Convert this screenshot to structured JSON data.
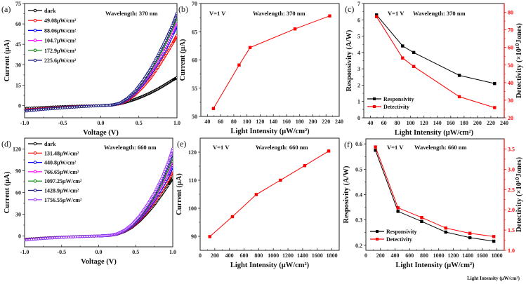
{
  "stray_label": "Light Intensity (μW/cm²)",
  "chart_data": [
    {
      "id": "a",
      "panel_label": "(a)",
      "type": "line",
      "annotation": "Wavelength: 370 nm",
      "xlabel": "Voltage (V)",
      "ylabel": "Current (μA)",
      "xlim": [
        -1.0,
        1.0
      ],
      "ylim": [
        -9,
        75
      ],
      "xticks": [
        -1.0,
        -0.5,
        0.0,
        0.5,
        1.0
      ],
      "xtick_labels": [
        "-1.0",
        "-0.5",
        "0.0",
        "0.5",
        "1.0"
      ],
      "yticks": [
        0,
        15,
        30,
        45,
        60,
        75
      ],
      "ytick_labels": [
        "0",
        "15",
        "30",
        "45",
        "60",
        "75"
      ],
      "legend_position": "top-left",
      "series": [
        {
          "name": "dark",
          "color": "#000000",
          "x": [
            -1.0,
            -0.75,
            -0.5,
            -0.25,
            0.0,
            0.15,
            0.25,
            0.35,
            0.45,
            0.55,
            0.65,
            0.75,
            0.85,
            0.95,
            1.0
          ],
          "y": [
            -2.0,
            -1.3,
            -0.7,
            -0.3,
            0.0,
            0.5,
            1.3,
            2.8,
            4.6,
            6.8,
            9.3,
            12.2,
            15.5,
            19.0,
            20.5
          ]
        },
        {
          "name": "49.08μW/cm²",
          "color": "#ff0000",
          "x": [
            -1.0,
            -0.75,
            -0.5,
            -0.25,
            0.0,
            0.15,
            0.25,
            0.35,
            0.45,
            0.55,
            0.65,
            0.75,
            0.85,
            0.95,
            1.0
          ],
          "y": [
            -3.2,
            -2.2,
            -1.3,
            -0.6,
            0.0,
            0.4,
            1.3,
            4.0,
            8.0,
            13.5,
            20.0,
            28.0,
            37.0,
            46.5,
            51.4
          ]
        },
        {
          "name": "88.06μW/cm²",
          "color": "#0000ff",
          "x": [
            -1.0,
            -0.75,
            -0.5,
            -0.25,
            0.0,
            0.15,
            0.25,
            0.35,
            0.45,
            0.55,
            0.65,
            0.75,
            0.85,
            0.95,
            1.0
          ],
          "y": [
            -3.6,
            -2.5,
            -1.5,
            -0.7,
            0.0,
            0.4,
            1.5,
            4.6,
            9.2,
            15.5,
            23.0,
            31.5,
            41.0,
            53.0,
            59.1
          ]
        },
        {
          "name": "104.7μW/cm²",
          "color": "#ff00ff",
          "x": [
            -1.0,
            -0.75,
            -0.5,
            -0.25,
            0.0,
            0.15,
            0.25,
            0.35,
            0.45,
            0.55,
            0.65,
            0.75,
            0.85,
            0.95,
            1.0
          ],
          "y": [
            -3.8,
            -2.6,
            -1.6,
            -0.7,
            0.0,
            0.4,
            1.6,
            4.9,
            9.8,
            16.5,
            24.5,
            33.5,
            43.5,
            55.5,
            62.2
          ]
        },
        {
          "name": "172.9μW/cm²",
          "color": "#008000",
          "x": [
            -1.0,
            -0.75,
            -0.5,
            -0.25,
            0.0,
            0.15,
            0.25,
            0.35,
            0.45,
            0.55,
            0.65,
            0.75,
            0.85,
            0.95,
            1.0
          ],
          "y": [
            -4.0,
            -2.7,
            -1.7,
            -0.8,
            0.0,
            0.4,
            1.7,
            5.2,
            10.3,
            17.3,
            25.8,
            35.3,
            46.0,
            58.5,
            65.5
          ]
        },
        {
          "name": "225.6μW/cm²",
          "color": "#1a1a80",
          "x": [
            -1.0,
            -0.75,
            -0.5,
            -0.25,
            0.0,
            0.15,
            0.25,
            0.35,
            0.45,
            0.55,
            0.65,
            0.75,
            0.85,
            0.95,
            1.0
          ],
          "y": [
            -4.2,
            -2.8,
            -1.8,
            -0.8,
            0.0,
            0.4,
            1.8,
            5.4,
            10.7,
            18.0,
            26.8,
            36.8,
            48.0,
            60.5,
            67.8
          ]
        }
      ]
    },
    {
      "id": "b",
      "panel_label": "(b)",
      "type": "line",
      "annotations": [
        "V=1 V",
        "Wavelength: 370 nm"
      ],
      "xlabel": "Light Intensity (μW/cm²)",
      "ylabel": "Current (μA)",
      "xlim": [
        30,
        240
      ],
      "ylim": [
        50,
        70
      ],
      "xticks": [
        40,
        60,
        80,
        100,
        120,
        140,
        160,
        180,
        200,
        220,
        240
      ],
      "xtick_labels": [
        "40",
        "60",
        "80",
        "100",
        "120",
        "140",
        "160",
        "180",
        "200",
        "220",
        "240"
      ],
      "yticks": [
        50,
        55,
        60,
        65,
        70
      ],
      "ytick_labels": [
        "50",
        "55",
        "60",
        "65",
        "70"
      ],
      "series": [
        {
          "name": "Current",
          "color": "#ff0000",
          "x": [
            49.08,
            88.06,
            104.7,
            172.9,
            225.6
          ],
          "y": [
            51.4,
            59.1,
            62.2,
            65.5,
            67.8
          ]
        }
      ]
    },
    {
      "id": "c",
      "panel_label": "(c)",
      "type": "line",
      "annotations": [
        "V=1 V",
        "Wavelength: 370 nm"
      ],
      "xlabel": "Light Intensity (μW/cm²)",
      "ylabel": "Responsivity (A/W)",
      "y2label": "Detectivity (×10¹⁰Jones)",
      "xlim": [
        30,
        240
      ],
      "ylim": [
        0,
        7
      ],
      "y2lim": [
        20,
        85
      ],
      "xticks": [
        40,
        60,
        80,
        100,
        120,
        140,
        160,
        180,
        200,
        220,
        240
      ],
      "xtick_labels": [
        "40",
        "60",
        "80",
        "100",
        "120",
        "140",
        "160",
        "180",
        "200",
        "220",
        "240"
      ],
      "yticks": [
        0,
        1,
        2,
        3,
        4,
        5,
        6,
        7
      ],
      "ytick_labels": [
        "0",
        "1",
        "2",
        "3",
        "4",
        "5",
        "6",
        "7"
      ],
      "y2ticks": [
        20,
        30,
        40,
        50,
        60,
        70,
        80
      ],
      "y2tick_labels": [
        "20",
        "30",
        "40",
        "50",
        "60",
        "70",
        "80"
      ],
      "y2color": "#ff0000",
      "legend_position": "bottom-left",
      "series": [
        {
          "name": "Responsivity",
          "color": "#000000",
          "axis": "left",
          "x": [
            49.08,
            88.06,
            104.7,
            172.9,
            225.6
          ],
          "y": [
            6.3,
            4.4,
            4.0,
            2.6,
            2.1
          ]
        },
        {
          "name": "Detectivity",
          "color": "#ff0000",
          "axis": "right",
          "x": [
            49.08,
            88.06,
            104.7,
            172.9,
            225.6
          ],
          "y": [
            77.5,
            54.0,
            49.2,
            32.0,
            25.8
          ]
        }
      ]
    },
    {
      "id": "d",
      "panel_label": "(d)",
      "type": "line",
      "annotation": "Wavelength: 660 nm",
      "xlabel": "Voltage (V)",
      "ylabel": "Current (μA)",
      "xlim": [
        -1.0,
        1.0
      ],
      "ylim": [
        -15,
        135
      ],
      "xticks": [
        -1.0,
        -0.5,
        0.0,
        0.5,
        1.0
      ],
      "xtick_labels": [
        "-1.0",
        "-0.5",
        "0.0",
        "0.5",
        "1.0"
      ],
      "yticks": [
        0,
        30,
        60,
        90,
        120
      ],
      "ytick_labels": [
        "0",
        "30",
        "60",
        "90",
        "120"
      ],
      "legend_position": "top-left",
      "series": [
        {
          "name": "dark",
          "color": "#000000",
          "x": [
            -1.0,
            -0.75,
            -0.5,
            -0.25,
            0.0,
            0.15,
            0.25,
            0.35,
            0.45,
            0.55,
            0.65,
            0.75,
            0.85,
            0.95,
            1.0
          ],
          "y": [
            -4.5,
            -2.8,
            -1.6,
            -0.7,
            0.0,
            0.8,
            2.5,
            6.2,
            12.0,
            20.5,
            31.0,
            43.0,
            57.0,
            72.0,
            80.0
          ]
        },
        {
          "name": "131.48μW/cm²",
          "color": "#ff0000",
          "x": [
            -1.0,
            -0.75,
            -0.5,
            -0.25,
            0.0,
            0.15,
            0.25,
            0.35,
            0.45,
            0.55,
            0.65,
            0.75,
            0.85,
            0.95,
            1.0
          ],
          "y": [
            -4.8,
            -3.0,
            -1.7,
            -0.7,
            0.0,
            0.8,
            2.6,
            6.5,
            12.8,
            22.0,
            33.5,
            46.5,
            61.5,
            79.0,
            89.9
          ]
        },
        {
          "name": "440.8μW/cm²",
          "color": "#0000ff",
          "x": [
            -1.0,
            -0.75,
            -0.5,
            -0.25,
            0.0,
            0.15,
            0.25,
            0.35,
            0.45,
            0.55,
            0.65,
            0.75,
            0.85,
            0.95,
            1.0
          ],
          "y": [
            -5.0,
            -3.1,
            -1.8,
            -0.8,
            0.0,
            0.8,
            2.7,
            6.8,
            13.5,
            23.2,
            35.3,
            49.2,
            65.5,
            85.0,
            97.0
          ]
        },
        {
          "name": "766.65μW/cm²",
          "color": "#ff00ff",
          "x": [
            -1.0,
            -0.75,
            -0.5,
            -0.25,
            0.0,
            0.15,
            0.25,
            0.35,
            0.45,
            0.55,
            0.65,
            0.75,
            0.85,
            0.95,
            1.0
          ],
          "y": [
            -5.2,
            -3.2,
            -1.8,
            -0.8,
            0.0,
            0.8,
            2.8,
            7.1,
            14.2,
            24.5,
            37.2,
            52.0,
            69.5,
            91.5,
            104.9
          ]
        },
        {
          "name": "1097.25μW/cm²",
          "color": "#008000",
          "x": [
            -1.0,
            -0.75,
            -0.5,
            -0.25,
            0.0,
            0.15,
            0.25,
            0.35,
            0.45,
            0.55,
            0.65,
            0.75,
            0.85,
            0.95,
            1.0
          ],
          "y": [
            -5.4,
            -3.3,
            -1.9,
            -0.8,
            0.0,
            0.8,
            2.9,
            7.4,
            14.8,
            25.5,
            38.8,
            54.3,
            72.8,
            96.0,
            110.0
          ]
        },
        {
          "name": "1428.9μW/cm²",
          "color": "#1a1a80",
          "x": [
            -1.0,
            -0.75,
            -0.5,
            -0.25,
            0.0,
            0.15,
            0.25,
            0.35,
            0.45,
            0.55,
            0.65,
            0.75,
            0.85,
            0.95,
            1.0
          ],
          "y": [
            -5.6,
            -3.4,
            -1.9,
            -0.8,
            0.0,
            0.8,
            3.0,
            7.7,
            15.4,
            26.5,
            40.4,
            56.6,
            76.0,
            100.5,
            115.2
          ]
        },
        {
          "name": "1756.55μW/cm²",
          "color": "#9933ff",
          "x": [
            -1.0,
            -0.75,
            -0.5,
            -0.25,
            0.0,
            0.15,
            0.25,
            0.35,
            0.45,
            0.55,
            0.65,
            0.75,
            0.85,
            0.95,
            1.0
          ],
          "y": [
            -5.8,
            -3.5,
            -2.0,
            -0.9,
            0.0,
            0.8,
            3.1,
            8.0,
            16.0,
            27.5,
            42.0,
            59.0,
            79.3,
            105.0,
            120.4
          ]
        }
      ]
    },
    {
      "id": "e",
      "panel_label": "(e)",
      "type": "line",
      "annotations": [
        "V=1 V",
        "Wavelength: 660 nm"
      ],
      "xlabel": "Light Intensity (μW/cm²)",
      "ylabel": "Current (μA)",
      "xlim": [
        0,
        1900
      ],
      "ylim": [
        85,
        125
      ],
      "xticks": [
        0,
        200,
        400,
        600,
        800,
        1000,
        1200,
        1400,
        1600,
        1800
      ],
      "xtick_labels": [
        "0",
        "200",
        "400",
        "600",
        "800",
        "1000",
        "1200",
        "1400",
        "1600",
        "1800"
      ],
      "yticks": [
        90,
        100,
        110,
        120
      ],
      "ytick_labels": [
        "90",
        "100",
        "110",
        "120"
      ],
      "series": [
        {
          "name": "Current",
          "color": "#ff0000",
          "x": [
            131.48,
            440.8,
            766.65,
            1097.25,
            1428.9,
            1756.55
          ],
          "y": [
            89.9,
            97.0,
            104.9,
            110.0,
            115.2,
            120.4
          ]
        }
      ]
    },
    {
      "id": "f",
      "panel_label": "(f)",
      "type": "line",
      "annotations": [
        "V=1 V",
        "Wavelength: 660 nm"
      ],
      "xlabel": "Light Intensity (μW/cm²)",
      "ylabel": "Resposivity (A/W)",
      "y2label": "Detectivity (×10¹⁰Jones)",
      "xlim": [
        0,
        1900
      ],
      "ylim": [
        0.18,
        0.62
      ],
      "y2lim": [
        1.0,
        3.75
      ],
      "xticks": [
        0,
        200,
        400,
        600,
        800,
        1000,
        1200,
        1400,
        1600,
        1800
      ],
      "xtick_labels": [
        "0",
        "200",
        "400",
        "600",
        "800",
        "1000",
        "1200",
        "1400",
        "1600",
        "1800"
      ],
      "yticks": [
        0.2,
        0.3,
        0.4,
        0.5,
        0.6
      ],
      "ytick_labels": [
        "0.2",
        "0.3",
        "0.4",
        "0.5",
        "0.6"
      ],
      "y2ticks": [
        1.0,
        1.5,
        2.0,
        2.5,
        3.0,
        3.5
      ],
      "y2tick_labels": [
        "1.0",
        "1.5",
        "2.0",
        "2.5",
        "3.0",
        "3.5"
      ],
      "y2color": "#ff0000",
      "legend_position": "bottom-left",
      "series": [
        {
          "name": "Responsivity",
          "color": "#000000",
          "axis": "left",
          "x": [
            131.48,
            440.8,
            766.65,
            1097.25,
            1428.9,
            1756.55
          ],
          "y": [
            0.575,
            0.334,
            0.294,
            0.252,
            0.23,
            0.216
          ]
        },
        {
          "name": "Detectivity",
          "color": "#ff0000",
          "axis": "right",
          "x": [
            131.48,
            440.8,
            766.65,
            1097.25,
            1428.9,
            1756.55
          ],
          "y": [
            3.55,
            2.05,
            1.81,
            1.55,
            1.42,
            1.34
          ]
        }
      ]
    }
  ]
}
